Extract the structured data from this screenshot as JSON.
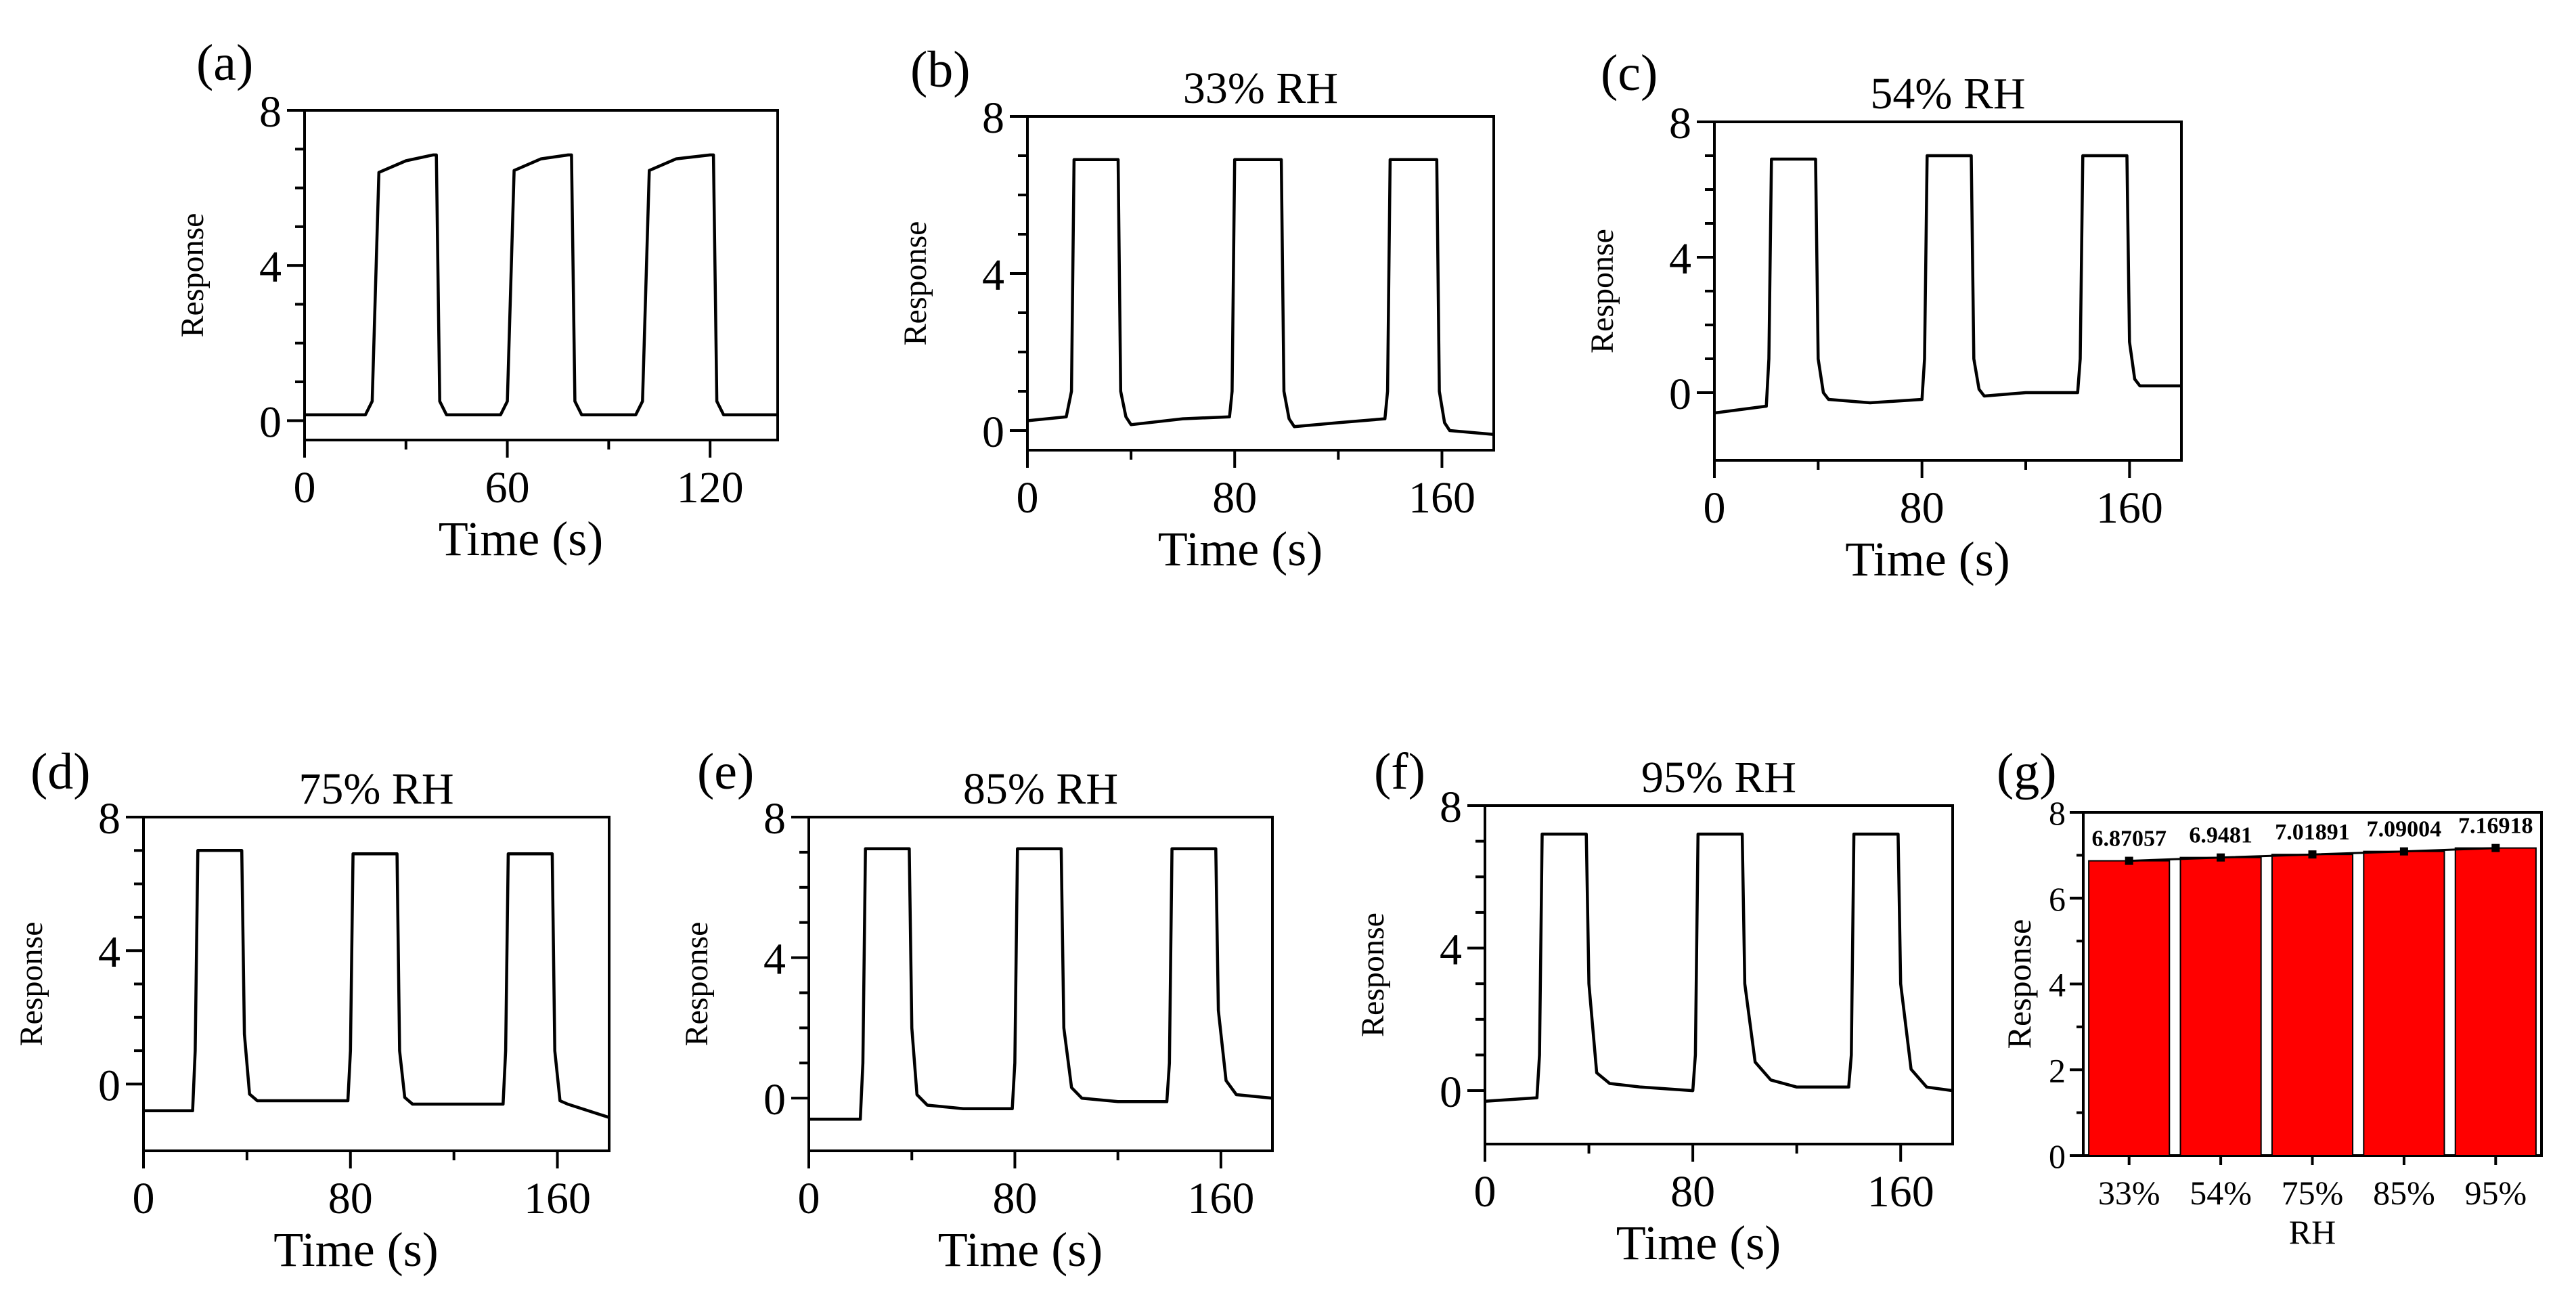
{
  "chart_data": [
    {
      "id": "a",
      "panel_label": "(a)",
      "type": "line",
      "title": "",
      "xlabel": "Time (s)",
      "ylabel": "Response",
      "xlim": [
        0,
        140
      ],
      "ylim": [
        -0.5,
        8
      ],
      "xticks": [
        0,
        60,
        120
      ],
      "yticks": [
        0,
        4,
        8
      ],
      "xtick_labels": [
        "0",
        "60",
        "120"
      ],
      "ytick_labels": [
        "0",
        "4",
        "8"
      ],
      "x": [
        0,
        18,
        20,
        22,
        30,
        38,
        39,
        40,
        42,
        58,
        60,
        62,
        70,
        78,
        79,
        80,
        82,
        98,
        100,
        102,
        110,
        120,
        121,
        122,
        124,
        140
      ],
      "y": [
        0.15,
        0.15,
        0.5,
        6.4,
        6.7,
        6.85,
        6.85,
        0.5,
        0.15,
        0.15,
        0.5,
        6.45,
        6.75,
        6.85,
        6.85,
        0.5,
        0.15,
        0.15,
        0.5,
        6.45,
        6.75,
        6.85,
        6.85,
        0.5,
        0.15,
        0.15
      ]
    },
    {
      "id": "b",
      "panel_label": "(b)",
      "type": "line",
      "title": "33% RH",
      "xlabel": "Time (s)",
      "ylabel": "Response",
      "xlim": [
        0,
        180
      ],
      "ylim": [
        -0.5,
        8
      ],
      "xticks": [
        0,
        80,
        160
      ],
      "yticks": [
        0,
        4,
        8
      ],
      "xtick_labels": [
        "0",
        "80",
        "160"
      ],
      "ytick_labels": [
        "0",
        "4",
        "8"
      ],
      "x": [
        0,
        15,
        17,
        18,
        35,
        36,
        38,
        40,
        60,
        78,
        79,
        80,
        98,
        99,
        101,
        103,
        120,
        138,
        139,
        140,
        158,
        159,
        161,
        163,
        180
      ],
      "y": [
        0.25,
        0.35,
        1.0,
        6.9,
        6.9,
        1.0,
        0.35,
        0.15,
        0.3,
        0.35,
        1.0,
        6.9,
        6.9,
        1.0,
        0.3,
        0.1,
        0.2,
        0.3,
        1.0,
        6.9,
        6.9,
        1.0,
        0.2,
        0.0,
        -0.1
      ]
    },
    {
      "id": "c",
      "panel_label": "(c)",
      "type": "line",
      "title": "54% RH",
      "xlabel": "Time (s)",
      "ylabel": "Response",
      "xlim": [
        0,
        180
      ],
      "ylim": [
        -2,
        8
      ],
      "xticks": [
        0,
        80,
        160
      ],
      "yticks": [
        0,
        4,
        8
      ],
      "xtick_labels": [
        "0",
        "80",
        "160"
      ],
      "ytick_labels": [
        "0",
        "4",
        "8"
      ],
      "x": [
        0,
        20,
        21,
        22,
        39,
        40,
        42,
        44,
        60,
        80,
        81,
        82,
        99,
        100,
        102,
        104,
        120,
        140,
        141,
        142,
        159,
        160,
        162,
        164,
        180
      ],
      "y": [
        -0.6,
        -0.4,
        1.0,
        6.9,
        6.9,
        1.0,
        0.0,
        -0.2,
        -0.3,
        -0.2,
        1.0,
        7.0,
        7.0,
        1.0,
        0.1,
        -0.1,
        0.0,
        0.0,
        1.0,
        7.0,
        7.0,
        1.5,
        0.4,
        0.2,
        0.2
      ]
    },
    {
      "id": "d",
      "panel_label": "(d)",
      "type": "line",
      "title": "75% RH",
      "xlabel": "Time (s)",
      "ylabel": "Response",
      "xlim": [
        0,
        180
      ],
      "ylim": [
        -2,
        8
      ],
      "xticks": [
        0,
        80,
        160
      ],
      "yticks": [
        0,
        4,
        8
      ],
      "xtick_labels": [
        "0",
        "80",
        "160"
      ],
      "ytick_labels": [
        "0",
        "4",
        "8"
      ],
      "x": [
        0,
        19,
        20,
        21,
        38,
        39,
        41,
        44,
        60,
        79,
        80,
        81,
        98,
        99,
        101,
        104,
        120,
        139,
        140,
        141,
        158,
        159,
        161,
        164,
        180
      ],
      "y": [
        -0.8,
        -0.8,
        1.0,
        7.0,
        7.0,
        1.5,
        -0.3,
        -0.5,
        -0.5,
        -0.5,
        1.0,
        6.9,
        6.9,
        1.0,
        -0.4,
        -0.6,
        -0.6,
        -0.6,
        1.0,
        6.9,
        6.9,
        1.0,
        -0.5,
        -0.6,
        -1.0
      ]
    },
    {
      "id": "e",
      "panel_label": "(e)",
      "type": "line",
      "title": "85% RH",
      "xlabel": "Time (s)",
      "ylabel": "Response",
      "xlim": [
        0,
        180
      ],
      "ylim": [
        -1.5,
        8
      ],
      "xticks": [
        0,
        80,
        160
      ],
      "yticks": [
        0,
        4,
        8
      ],
      "xtick_labels": [
        "0",
        "80",
        "160"
      ],
      "ytick_labels": [
        "0",
        "4",
        "8"
      ],
      "x": [
        0,
        20,
        21,
        22,
        39,
        40,
        42,
        46,
        60,
        79,
        80,
        81,
        98,
        99,
        102,
        106,
        120,
        139,
        140,
        141,
        158,
        159,
        162,
        166,
        180
      ],
      "y": [
        -0.6,
        -0.6,
        1.0,
        7.1,
        7.1,
        2.0,
        0.1,
        -0.2,
        -0.3,
        -0.3,
        1.0,
        7.1,
        7.1,
        2.0,
        0.3,
        0.0,
        -0.1,
        -0.1,
        1.0,
        7.1,
        7.1,
        2.5,
        0.5,
        0.1,
        0.0
      ]
    },
    {
      "id": "f",
      "panel_label": "(f)",
      "type": "line",
      "title": "95% RH",
      "xlabel": "Time (s)",
      "ylabel": "Response",
      "xlim": [
        0,
        180
      ],
      "ylim": [
        -1.5,
        8
      ],
      "xticks": [
        0,
        80,
        160
      ],
      "yticks": [
        0,
        4,
        8
      ],
      "xtick_labels": [
        "0",
        "80",
        "160"
      ],
      "ytick_labels": [
        "0",
        "4",
        "8"
      ],
      "x": [
        0,
        20,
        21,
        22,
        39,
        40,
        43,
        48,
        60,
        80,
        81,
        82,
        99,
        100,
        104,
        110,
        120,
        140,
        141,
        142,
        159,
        160,
        164,
        170,
        180
      ],
      "y": [
        -0.3,
        -0.2,
        1.0,
        7.2,
        7.2,
        3.0,
        0.5,
        0.2,
        0.1,
        0.0,
        1.0,
        7.2,
        7.2,
        3.0,
        0.8,
        0.3,
        0.1,
        0.1,
        1.0,
        7.2,
        7.2,
        3.0,
        0.6,
        0.1,
        0.0
      ]
    },
    {
      "id": "g",
      "panel_label": "(g)",
      "type": "bar",
      "title": "",
      "xlabel": "RH",
      "ylabel": "Response",
      "categories": [
        "33%",
        "54%",
        "75%",
        "85%",
        "95%"
      ],
      "values": [
        6.87057,
        6.9481,
        7.01891,
        7.09004,
        7.16918
      ],
      "value_labels": [
        "6.87057",
        "6.9481",
        "7.01891",
        "7.09004",
        "7.16918"
      ],
      "ylim": [
        0,
        8
      ],
      "yticks": [
        0,
        2,
        4,
        6,
        8
      ],
      "ytick_labels": [
        "0",
        "2",
        "4",
        "6",
        "8"
      ],
      "bar_color": "#ff0000"
    }
  ]
}
